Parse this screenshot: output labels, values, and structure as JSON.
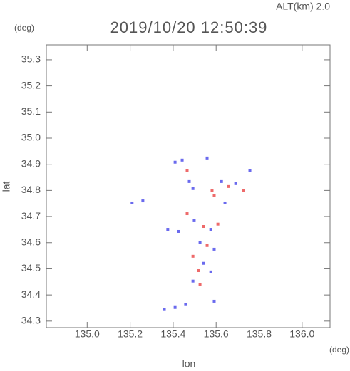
{
  "chart_data": {
    "type": "scatter",
    "title": "2019/10/20 12:50:39",
    "subtitle": "ALT(km) 2.0",
    "y_unit": "(deg)",
    "x_unit": "(deg)",
    "y_label": "lat",
    "x_label": "lon",
    "xlim": [
      134.81,
      136.13
    ],
    "ylim": [
      34.275,
      35.357
    ],
    "xticks": [
      {
        "value": 135.0,
        "label": "135.0"
      },
      135.2,
      135.4,
      135.6,
      135.8,
      {
        "value": 136.0,
        "label": "136.0"
      }
    ],
    "yticks": [
      34.3,
      34.4,
      34.5,
      34.6,
      34.7,
      34.8,
      34.9,
      {
        "value": 35.0,
        "label": "35.0"
      },
      35.1,
      35.2,
      35.3
    ],
    "x": [
      135.209,
      135.259,
      135.409,
      135.442,
      135.558,
      135.465,
      135.475,
      135.492,
      135.581,
      135.591,
      135.625,
      135.658,
      135.691,
      135.728,
      135.757,
      135.641,
      135.375,
      135.425,
      135.465,
      135.498,
      135.542,
      135.575,
      135.608,
      135.525,
      135.558,
      135.591,
      135.492,
      135.542,
      135.518,
      135.575,
      135.525,
      135.492,
      135.359,
      135.409,
      135.458,
      135.591
    ],
    "values": [
      34.752,
      34.76,
      34.908,
      34.916,
      34.924,
      34.875,
      34.834,
      34.807,
      34.799,
      34.78,
      34.834,
      34.815,
      34.826,
      34.799,
      34.875,
      34.752,
      34.651,
      34.643,
      34.711,
      34.684,
      34.662,
      34.651,
      34.671,
      34.602,
      34.589,
      34.575,
      34.548,
      34.521,
      34.493,
      34.488,
      34.439,
      34.453,
      34.344,
      34.352,
      34.363,
      34.376
    ],
    "colors": [
      "#6a6aee",
      "#6a6aee",
      "#6a6aee",
      "#6a6aee",
      "#6a6aee",
      "#ee6a6a",
      "#6a6aee",
      "#6a6aee",
      "#ee6a6a",
      "#ee6a6a",
      "#6a6aee",
      "#ee6a6a",
      "#6a6aee",
      "#ee6a6a",
      "#6a6aee",
      "#6a6aee",
      "#6a6aee",
      "#6a6aee",
      "#ee6a6a",
      "#6a6aee",
      "#ee6a6a",
      "#6a6aee",
      "#ee6a6a",
      "#6a6aee",
      "#ee6a6a",
      "#6a6aee",
      "#ee6a6a",
      "#6a6aee",
      "#ee6a6a",
      "#6a6aee",
      "#ee6a6a",
      "#6a6aee",
      "#6a6aee",
      "#6a6aee",
      "#6a6aee",
      "#6a6aee"
    ]
  }
}
